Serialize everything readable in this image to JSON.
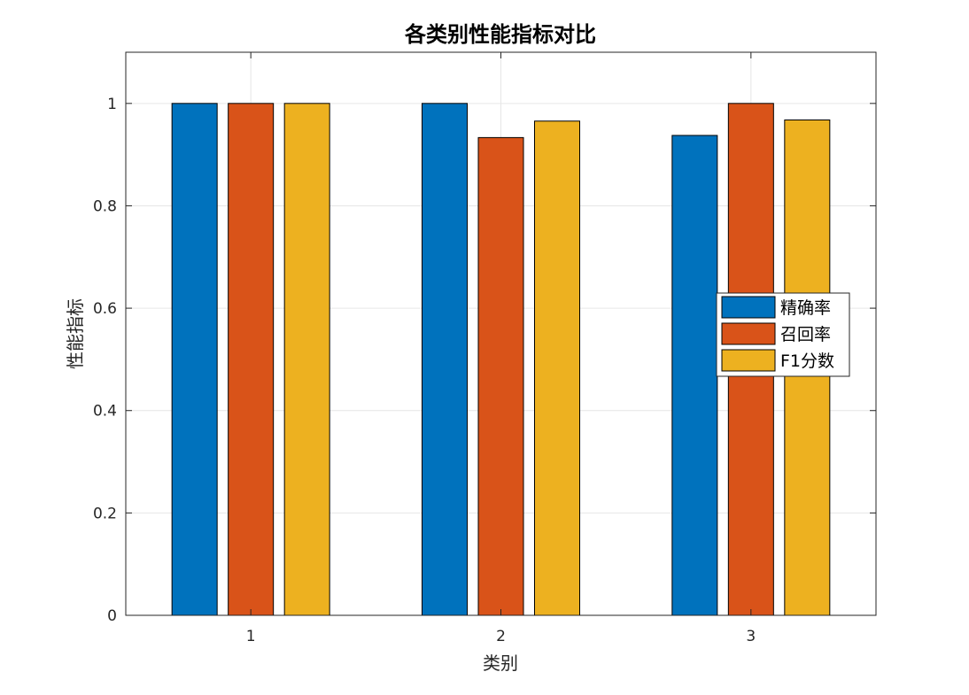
{
  "chart_data": {
    "type": "bar",
    "title": "各类别性能指标对比",
    "xlabel": "类别",
    "ylabel": "性能指标",
    "categories": [
      "1",
      "2",
      "3"
    ],
    "series": [
      {
        "name": "精确率",
        "color": "#0072BD",
        "values": [
          1.0,
          1.0,
          0.9375
        ]
      },
      {
        "name": "召回率",
        "color": "#D95319",
        "values": [
          1.0,
          0.9333,
          1.0
        ]
      },
      {
        "name": "F1分数",
        "color": "#EDB120",
        "values": [
          1.0,
          0.9655,
          0.9677
        ]
      }
    ],
    "ylim": [
      0,
      1.1
    ],
    "yticks": [
      "0",
      "0.2",
      "0.4",
      "0.6",
      "0.8",
      "1"
    ],
    "grid": true,
    "legend_position": "right"
  }
}
